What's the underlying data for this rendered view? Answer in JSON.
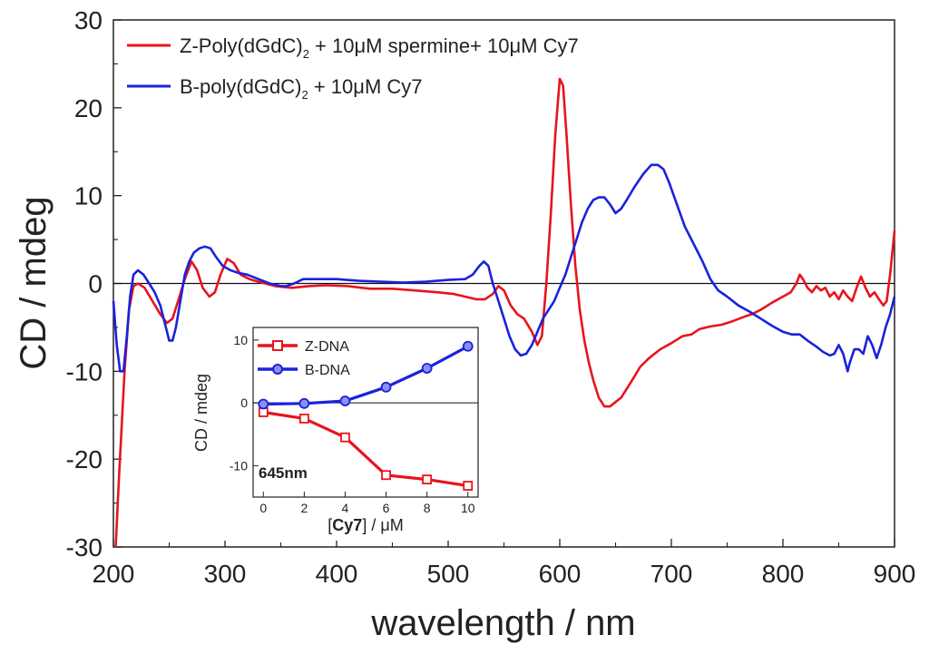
{
  "chart_data": [
    {
      "type": "line",
      "title": "",
      "xlabel": "wavelength / nm",
      "ylabel": "CD / mdeg",
      "xlim": [
        200,
        900
      ],
      "ylim": [
        -30,
        30
      ],
      "x_ticks": [
        200,
        300,
        400,
        500,
        600,
        700,
        800,
        900
      ],
      "y_ticks": [
        -30,
        -20,
        -10,
        0,
        10,
        20,
        30
      ],
      "x_tick_labels": [
        "200",
        "300",
        "400",
        "500",
        "600",
        "700",
        "800",
        "900"
      ],
      "y_tick_labels": [
        "-30",
        "-20",
        "-10",
        "0",
        "10",
        "20",
        "30"
      ],
      "zero_line": true,
      "legend_position": "top-left",
      "series": [
        {
          "name": "Z-Poly(dGdC)",
          "legend_prefix": "Z-Poly(dGdC)",
          "legend_sub": "2",
          "legend_suffix": " + 10μM spermine+ 10μM Cy7",
          "color": "#e8141c",
          "points": [
            [
              202,
              -30
            ],
            [
              205,
              -22
            ],
            [
              210,
              -10
            ],
            [
              214,
              -3
            ],
            [
              218,
              -0.3
            ],
            [
              222,
              0
            ],
            [
              228,
              -0.5
            ],
            [
              235,
              -2
            ],
            [
              242,
              -3.5
            ],
            [
              248,
              -4.5
            ],
            [
              253,
              -4
            ],
            [
              258,
              -2
            ],
            [
              264,
              0.5
            ],
            [
              270,
              2.5
            ],
            [
              275,
              1.5
            ],
            [
              280,
              -0.5
            ],
            [
              286,
              -1.5
            ],
            [
              291,
              -1
            ],
            [
              296,
              1
            ],
            [
              302,
              2.8
            ],
            [
              308,
              2.3
            ],
            [
              314,
              1
            ],
            [
              322,
              0.5
            ],
            [
              330,
              0.2
            ],
            [
              345,
              -0.3
            ],
            [
              360,
              -0.5
            ],
            [
              375,
              -0.3
            ],
            [
              390,
              -0.2
            ],
            [
              410,
              -0.3
            ],
            [
              430,
              -0.6
            ],
            [
              450,
              -0.6
            ],
            [
              470,
              -0.8
            ],
            [
              490,
              -1
            ],
            [
              505,
              -1.2
            ],
            [
              515,
              -1.5
            ],
            [
              525,
              -1.8
            ],
            [
              533,
              -1.8
            ],
            [
              540,
              -1.2
            ],
            [
              545,
              -0.3
            ],
            [
              550,
              -0.8
            ],
            [
              556,
              -2.5
            ],
            [
              562,
              -3.5
            ],
            [
              568,
              -4
            ],
            [
              575,
              -5.5
            ],
            [
              580,
              -7
            ],
            [
              584,
              -6
            ],
            [
              588,
              0
            ],
            [
              592,
              8
            ],
            [
              596,
              17
            ],
            [
              600,
              23.3
            ],
            [
              603,
              22.5
            ],
            [
              606,
              17
            ],
            [
              610,
              9
            ],
            [
              614,
              2
            ],
            [
              618,
              -3
            ],
            [
              622,
              -6.5
            ],
            [
              626,
              -9
            ],
            [
              630,
              -11
            ],
            [
              635,
              -13
            ],
            [
              640,
              -14
            ],
            [
              645,
              -14
            ],
            [
              650,
              -13.5
            ],
            [
              655,
              -13
            ],
            [
              660,
              -12
            ],
            [
              665,
              -11
            ],
            [
              672,
              -9.5
            ],
            [
              680,
              -8.5
            ],
            [
              690,
              -7.5
            ],
            [
              700,
              -6.8
            ],
            [
              710,
              -6
            ],
            [
              718,
              -5.8
            ],
            [
              725,
              -5.2
            ],
            [
              735,
              -4.9
            ],
            [
              745,
              -4.7
            ],
            [
              755,
              -4.3
            ],
            [
              765,
              -3.8
            ],
            [
              772,
              -3.5
            ],
            [
              780,
              -3
            ],
            [
              790,
              -2.2
            ],
            [
              800,
              -1.5
            ],
            [
              807,
              -1
            ],
            [
              812,
              0
            ],
            [
              815,
              1
            ],
            [
              818,
              0.5
            ],
            [
              822,
              -0.5
            ],
            [
              826,
              -1
            ],
            [
              830,
              -0.3
            ],
            [
              834,
              -0.8
            ],
            [
              838,
              -0.5
            ],
            [
              842,
              -1.5
            ],
            [
              846,
              -1
            ],
            [
              850,
              -1.8
            ],
            [
              854,
              -0.8
            ],
            [
              858,
              -1.5
            ],
            [
              862,
              -2
            ],
            [
              866,
              -0.5
            ],
            [
              870,
              0.8
            ],
            [
              874,
              -0.5
            ],
            [
              878,
              -1.5
            ],
            [
              882,
              -1
            ],
            [
              886,
              -1.8
            ],
            [
              890,
              -2.5
            ],
            [
              893,
              -2
            ],
            [
              896,
              1
            ],
            [
              900,
              6
            ]
          ]
        },
        {
          "name": "B-poly(dGdC)",
          "legend_prefix": "B-poly(dGdC)",
          "legend_sub": "2",
          "legend_suffix": " + 10μM Cy7",
          "color": "#1a22dc",
          "points": [
            [
              200,
              -2
            ],
            [
              203,
              -7
            ],
            [
              206,
              -10
            ],
            [
              209,
              -10
            ],
            [
              212,
              -6
            ],
            [
              215,
              -1.5
            ],
            [
              218,
              1
            ],
            [
              222,
              1.5
            ],
            [
              227,
              1
            ],
            [
              232,
              0
            ],
            [
              237,
              -1
            ],
            [
              242,
              -2.5
            ],
            [
              246,
              -4.5
            ],
            [
              250,
              -6.5
            ],
            [
              253,
              -6.5
            ],
            [
              256,
              -5
            ],
            [
              260,
              -2
            ],
            [
              264,
              1
            ],
            [
              268,
              2.5
            ],
            [
              272,
              3.5
            ],
            [
              277,
              4
            ],
            [
              282,
              4.2
            ],
            [
              287,
              4
            ],
            [
              292,
              3
            ],
            [
              298,
              2
            ],
            [
              305,
              1.5
            ],
            [
              312,
              1.2
            ],
            [
              320,
              1
            ],
            [
              330,
              0.5
            ],
            [
              340,
              0
            ],
            [
              350,
              -0.3
            ],
            [
              355,
              -0.3
            ],
            [
              362,
              0
            ],
            [
              370,
              0.5
            ],
            [
              380,
              0.5
            ],
            [
              390,
              0.5
            ],
            [
              400,
              0.5
            ],
            [
              420,
              0.3
            ],
            [
              440,
              0.2
            ],
            [
              460,
              0.1
            ],
            [
              480,
              0.2
            ],
            [
              500,
              0.4
            ],
            [
              515,
              0.5
            ],
            [
              522,
              1
            ],
            [
              528,
              2
            ],
            [
              532,
              2.5
            ],
            [
              536,
              2
            ],
            [
              540,
              0
            ],
            [
              545,
              -2
            ],
            [
              550,
              -4
            ],
            [
              555,
              -6
            ],
            [
              560,
              -7.5
            ],
            [
              565,
              -8.2
            ],
            [
              570,
              -8
            ],
            [
              575,
              -7
            ],
            [
              580,
              -5.5
            ],
            [
              585,
              -4
            ],
            [
              590,
              -3
            ],
            [
              595,
              -2
            ],
            [
              600,
              -0.5
            ],
            [
              605,
              1
            ],
            [
              610,
              3
            ],
            [
              615,
              5
            ],
            [
              620,
              7
            ],
            [
              625,
              8.5
            ],
            [
              630,
              9.5
            ],
            [
              635,
              9.8
            ],
            [
              640,
              9.8
            ],
            [
              645,
              9
            ],
            [
              650,
              8
            ],
            [
              655,
              8.5
            ],
            [
              660,
              9.5
            ],
            [
              667,
              11
            ],
            [
              675,
              12.5
            ],
            [
              682,
              13.5
            ],
            [
              688,
              13.5
            ],
            [
              693,
              13
            ],
            [
              698,
              11.5
            ],
            [
              705,
              9
            ],
            [
              712,
              6.5
            ],
            [
              720,
              4.5
            ],
            [
              728,
              2.5
            ],
            [
              735,
              0.5
            ],
            [
              742,
              -0.8
            ],
            [
              750,
              -1.5
            ],
            [
              760,
              -2.5
            ],
            [
              770,
              -3.2
            ],
            [
              780,
              -4
            ],
            [
              790,
              -4.8
            ],
            [
              800,
              -5.5
            ],
            [
              808,
              -5.8
            ],
            [
              815,
              -5.8
            ],
            [
              822,
              -6.5
            ],
            [
              830,
              -7.2
            ],
            [
              836,
              -7.8
            ],
            [
              842,
              -8.2
            ],
            [
              846,
              -8
            ],
            [
              850,
              -7
            ],
            [
              854,
              -8
            ],
            [
              858,
              -10
            ],
            [
              860,
              -9
            ],
            [
              864,
              -7.5
            ],
            [
              868,
              -7.5
            ],
            [
              872,
              -8
            ],
            [
              876,
              -6
            ],
            [
              880,
              -7
            ],
            [
              884,
              -8.5
            ],
            [
              888,
              -7
            ],
            [
              892,
              -5
            ],
            [
              896,
              -3.5
            ],
            [
              900,
              -1.5
            ]
          ]
        }
      ]
    },
    {
      "type": "line",
      "title": "",
      "annotation": "645nm",
      "xlabel_bracket_text": "Cy7",
      "xlabel_prefix": "[",
      "xlabel_suffix": "] / μM",
      "ylabel": "CD / mdeg",
      "xlim": [
        -0.5,
        10.5
      ],
      "ylim": [
        -15,
        12
      ],
      "x_ticks": [
        0,
        2,
        4,
        6,
        8,
        10
      ],
      "y_ticks": [
        -10,
        0,
        10
      ],
      "x_tick_labels": [
        "0",
        "2",
        "4",
        "6",
        "8",
        "10"
      ],
      "y_tick_labels": [
        "-10",
        "0",
        "10"
      ],
      "zero_line": true,
      "legend_position": "top-left",
      "series": [
        {
          "name": "Z-DNA",
          "color": "#e8141c",
          "marker": "square",
          "x": [
            0,
            2,
            4,
            6,
            8,
            10
          ],
          "values": [
            -1.5,
            -2.5,
            -5.5,
            -11.5,
            -12.2,
            -13.2
          ]
        },
        {
          "name": "B-DNA",
          "color": "#1a22dc",
          "marker": "circle",
          "x": [
            0,
            2,
            4,
            6,
            8,
            10
          ],
          "values": [
            -0.2,
            -0.1,
            0.3,
            2.5,
            5.5,
            9.0
          ]
        }
      ]
    }
  ]
}
